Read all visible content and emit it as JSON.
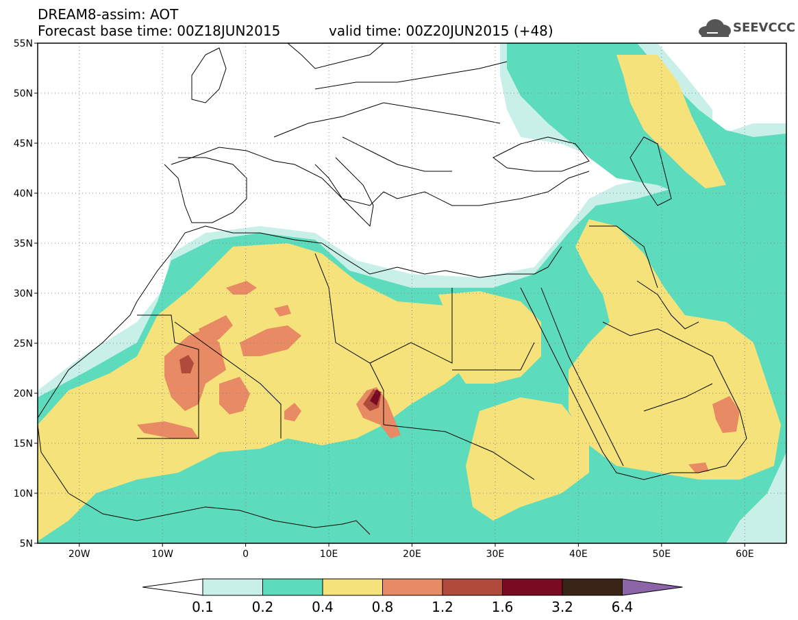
{
  "title": {
    "line1": "DREAM8-assim: AOT",
    "line2": "Forecast base time: 00Z18JUN2015",
    "valid": "valid time: 00Z20JUN2015 (+48)"
  },
  "logo": {
    "text": "SEEVCCC",
    "icon": "cloud-icon"
  },
  "map": {
    "lon_range": [
      -25,
      65
    ],
    "lat_range": [
      5,
      55
    ],
    "lat_ticks": [
      "5N",
      "10N",
      "15N",
      "20N",
      "25N",
      "30N",
      "35N",
      "40N",
      "45N",
      "50N",
      "55N"
    ],
    "lon_ticks": [
      "20W",
      "10W",
      "0",
      "10E",
      "20E",
      "30E",
      "40E",
      "50E",
      "60E"
    ],
    "gridlines": "dotted"
  },
  "colorbar": {
    "labels": [
      "0.1",
      "0.2",
      "0.4",
      "0.8",
      "1.2",
      "1.6",
      "3.2",
      "6.4"
    ],
    "colors": [
      "#ffffff",
      "#c8f0e8",
      "#5cdcbc",
      "#f5e27a",
      "#e88a64",
      "#b04a3a",
      "#7a0a22",
      "#3a2418",
      "#8c64a8"
    ]
  },
  "legend": {
    "shading_levels": [
      {
        "min": 0.1,
        "color": "#c8f0e8"
      },
      {
        "min": 0.2,
        "color": "#5cdcbc"
      },
      {
        "min": 0.4,
        "color": "#f5e27a"
      },
      {
        "min": 0.8,
        "color": "#e88a64"
      },
      {
        "min": 1.2,
        "color": "#b04a3a"
      },
      {
        "min": 1.6,
        "color": "#7a0a22"
      }
    ]
  }
}
